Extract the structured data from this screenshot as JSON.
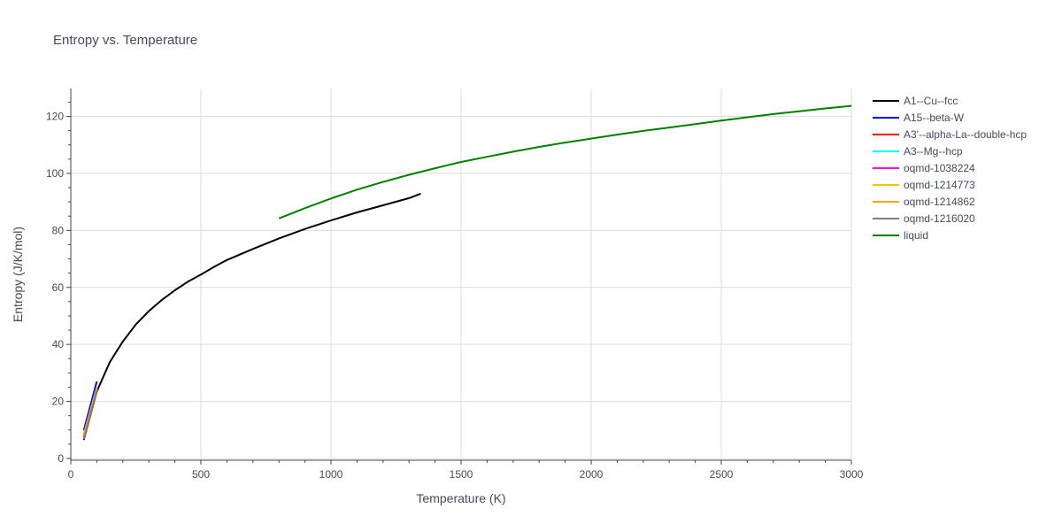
{
  "chart_data": {
    "type": "line",
    "title": "Entropy vs. Temperature",
    "xlabel": "Temperature (K)",
    "ylabel": "Entropy (J/K/mol)",
    "xlim": [
      0,
      3000
    ],
    "ylim": [
      0,
      130
    ],
    "xticks": [
      0,
      500,
      1000,
      1500,
      2000,
      2500,
      3000
    ],
    "yticks": [
      0,
      20,
      40,
      60,
      80,
      100,
      120
    ],
    "grid": true,
    "legend_position": "right",
    "series": [
      {
        "name": "A1--Cu--fcc",
        "color": "#000000",
        "x": [
          50,
          100,
          150,
          200,
          250,
          300,
          350,
          400,
          450,
          500,
          550,
          600,
          700,
          800,
          900,
          1000,
          1100,
          1200,
          1300,
          1345
        ],
        "y": [
          6.5,
          23.5,
          33.8,
          41.0,
          47.0,
          51.7,
          55.6,
          59.0,
          62.0,
          64.5,
          67.2,
          69.6,
          73.5,
          77.2,
          80.5,
          83.5,
          86.3,
          88.8,
          91.3,
          92.9
        ]
      },
      {
        "name": "A15--beta-W",
        "color": "#0000ff",
        "x": [
          50,
          100
        ],
        "y": [
          9.8,
          27.0
        ]
      },
      {
        "name": "A3'--alpha-La--double-hcp",
        "color": "#ff0000",
        "x": [
          50,
          100
        ],
        "y": [
          7.5,
          24.5
        ]
      },
      {
        "name": "A3--Mg--hcp",
        "color": "#00ffff",
        "x": [
          50,
          100
        ],
        "y": [
          7.0,
          24.0
        ]
      },
      {
        "name": "oqmd-1038224",
        "color": "#ff00ff",
        "x": [
          50,
          100
        ],
        "y": [
          7.2,
          24.2
        ]
      },
      {
        "name": "oqmd-1214773",
        "color": "#ffc400",
        "x": [
          50,
          100
        ],
        "y": [
          8.5,
          25.0
        ]
      },
      {
        "name": "oqmd-1214862",
        "color": "#ffa500",
        "x": [
          50,
          100
        ],
        "y": [
          8.0,
          24.6
        ]
      },
      {
        "name": "oqmd-1216020",
        "color": "#808080",
        "x": [
          50,
          100
        ],
        "y": [
          6.8,
          23.8
        ]
      },
      {
        "name": "liquid",
        "color": "#008000",
        "x": [
          800,
          900,
          950,
          1000,
          1100,
          1200,
          1300,
          1400,
          1500,
          1600,
          1700,
          1800,
          1900,
          2000,
          2100,
          2200,
          2300,
          2400,
          2500,
          2600,
          2700,
          2800,
          2900,
          3000
        ],
        "y": [
          84.2,
          87.8,
          89.5,
          91.2,
          94.3,
          97.0,
          99.5,
          101.8,
          104.0,
          105.8,
          107.6,
          109.3,
          110.8,
          112.2,
          113.6,
          114.9,
          116.1,
          117.3,
          118.5,
          119.7,
          120.8,
          121.8,
          122.8,
          123.7
        ]
      }
    ]
  }
}
